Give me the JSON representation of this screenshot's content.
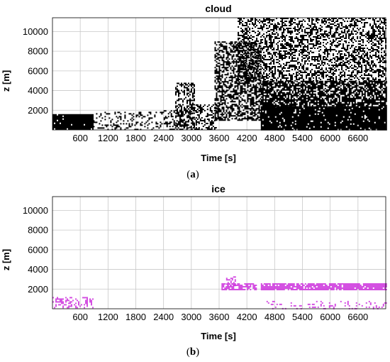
{
  "chart_data": [
    {
      "type": "heatmap",
      "title": "cloud",
      "xlabel": "Time [s]",
      "ylabel": "z [m]",
      "caption_prefix": "(",
      "caption_letter": "a",
      "caption_suffix": ")",
      "x_ticks": [
        600,
        1200,
        1800,
        2400,
        3000,
        3600,
        4200,
        4800,
        5400,
        6000,
        6600
      ],
      "y_ticks": [
        2000,
        4000,
        6000,
        8000,
        10000
      ],
      "xlim": [
        0,
        7200
      ],
      "ylim": [
        0,
        11400
      ],
      "grid": true,
      "mask_color": "#000000",
      "regions": [
        {
          "x": [
            0,
            880
          ],
          "z": [
            50,
            1600
          ],
          "density": 0.97
        },
        {
          "x": [
            880,
            2400
          ],
          "z": [
            50,
            1850
          ],
          "density": 0.22
        },
        {
          "x": [
            2400,
            3000
          ],
          "z": [
            50,
            2000
          ],
          "density": 0.28
        },
        {
          "x": [
            2650,
            3050
          ],
          "z": [
            200,
            4800
          ],
          "density": 0.45
        },
        {
          "x": [
            3000,
            3550
          ],
          "z": [
            50,
            2600
          ],
          "density": 0.38
        },
        {
          "x": [
            3500,
            4500
          ],
          "z": [
            1000,
            9000
          ],
          "density": 0.55
        },
        {
          "x": [
            4500,
            7200
          ],
          "z": [
            50,
            2400
          ],
          "density": 0.93
        },
        {
          "x": [
            4500,
            7200
          ],
          "z": [
            2400,
            5000
          ],
          "density": 0.72
        },
        {
          "x": [
            4000,
            7200
          ],
          "z": [
            5000,
            11400
          ],
          "density": 0.45
        }
      ]
    },
    {
      "type": "heatmap",
      "title": "ice",
      "xlabel": "Time [s]",
      "ylabel": "z [m]",
      "caption_prefix": "(",
      "caption_letter": "b",
      "caption_suffix": ")",
      "x_ticks": [
        600,
        1200,
        1800,
        2400,
        3000,
        3600,
        4200,
        4800,
        5400,
        6000,
        6600
      ],
      "y_ticks": [
        2000,
        4000,
        6000,
        8000,
        10000
      ],
      "xlim": [
        0,
        7200
      ],
      "ylim": [
        0,
        11400
      ],
      "grid": true,
      "mask_color": "#cc33dd",
      "regions": [
        {
          "x": [
            0,
            880
          ],
          "z": [
            50,
            1200
          ],
          "density": 0.38
        },
        {
          "x": [
            3650,
            4400
          ],
          "z": [
            2000,
            2600
          ],
          "density": 0.65
        },
        {
          "x": [
            3750,
            3950
          ],
          "z": [
            2400,
            3300
          ],
          "density": 0.45
        },
        {
          "x": [
            4500,
            7200
          ],
          "z": [
            2000,
            2600
          ],
          "density": 0.9
        },
        {
          "x": [
            4500,
            7200
          ],
          "z": [
            50,
            800
          ],
          "density": 0.14
        }
      ]
    }
  ]
}
